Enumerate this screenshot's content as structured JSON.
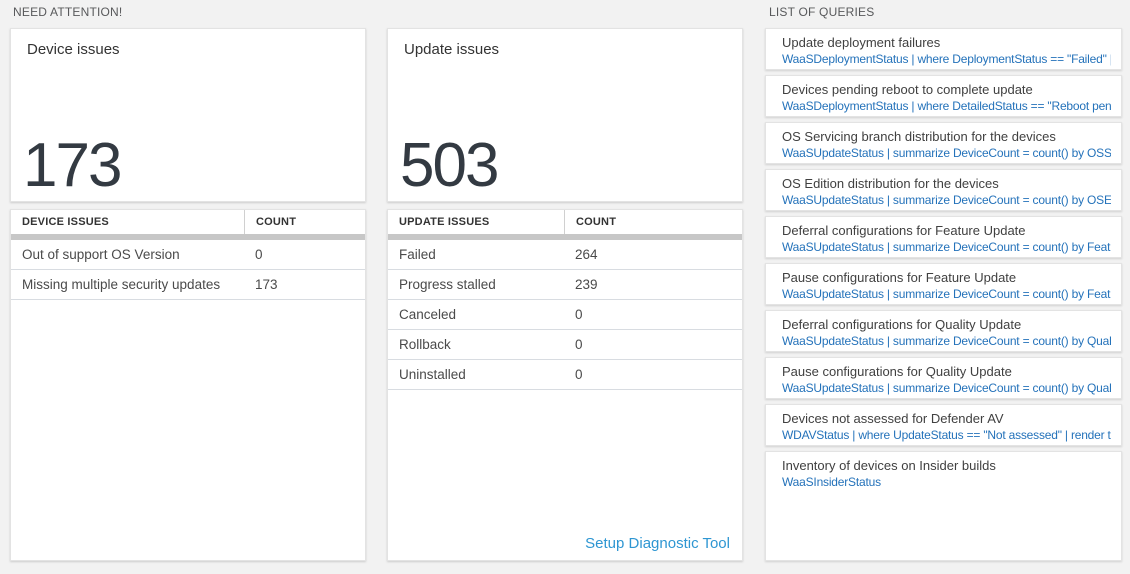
{
  "sections": {
    "need_attention_label": "NEED ATTENTION!",
    "list_of_queries_label": "LIST OF QUERIES"
  },
  "cards": {
    "device": {
      "title": "Device issues",
      "big_number": "173",
      "table": {
        "headers": [
          "DEVICE ISSUES",
          "COUNT"
        ],
        "rows": [
          {
            "label": "Out of support OS Version",
            "count": "0"
          },
          {
            "label": "Missing multiple security updates",
            "count": "173"
          }
        ]
      }
    },
    "update": {
      "title": "Update issues",
      "big_number": "503",
      "table": {
        "headers": [
          "UPDATE ISSUES",
          "COUNT"
        ],
        "rows": [
          {
            "label": "Failed",
            "count": "264"
          },
          {
            "label": "Progress stalled",
            "count": "239"
          },
          {
            "label": "Canceled",
            "count": "0"
          },
          {
            "label": "Rollback",
            "count": "0"
          },
          {
            "label": "Uninstalled",
            "count": "0"
          }
        ]
      },
      "footer_link": "Setup Diagnostic Tool"
    }
  },
  "queries": {
    "items": [
      {
        "title": "Update deployment failures",
        "query": "WaaSDeploymentStatus | where DeploymentStatus == \"Failed\" |..."
      },
      {
        "title": "Devices pending reboot to complete update",
        "query": "WaaSDeploymentStatus | where DetailedStatus == \"Reboot pend..."
      },
      {
        "title": "OS Servicing branch distribution for the devices",
        "query": "WaaSUpdateStatus | summarize DeviceCount = count() by OSSer..."
      },
      {
        "title": "OS Edition distribution for the devices",
        "query": "WaaSUpdateStatus | summarize DeviceCount = count() by OSEdit..."
      },
      {
        "title": "Deferral configurations for Feature Update",
        "query": "WaaSUpdateStatus | summarize DeviceCount = count() by Featur..."
      },
      {
        "title": "Pause configurations for Feature Update",
        "query": "WaaSUpdateStatus | summarize DeviceCount = count() by Featur..."
      },
      {
        "title": "Deferral configurations for Quality Update",
        "query": "WaaSUpdateStatus | summarize DeviceCount = count() by Qualit..."
      },
      {
        "title": "Pause configurations for Quality Update",
        "query": "WaaSUpdateStatus | summarize DeviceCount = count() by Qualit..."
      },
      {
        "title": "Devices not assessed for Defender AV",
        "query": "WDAVStatus | where UpdateStatus == \"Not assessed\" | render ta..."
      },
      {
        "title": "Inventory of devices on Insider builds",
        "query": "WaaSInsiderStatus"
      }
    ]
  },
  "colors": {
    "page_background": "#f2f2f2",
    "card_border": "#e3e3e3",
    "section_label": "#58595b",
    "big_number": "#333a42",
    "link_blue": "#2e96d2",
    "query_blue": "#2472ba",
    "row_border": "#d8dce1",
    "header_bar": "#c7c7c7"
  }
}
